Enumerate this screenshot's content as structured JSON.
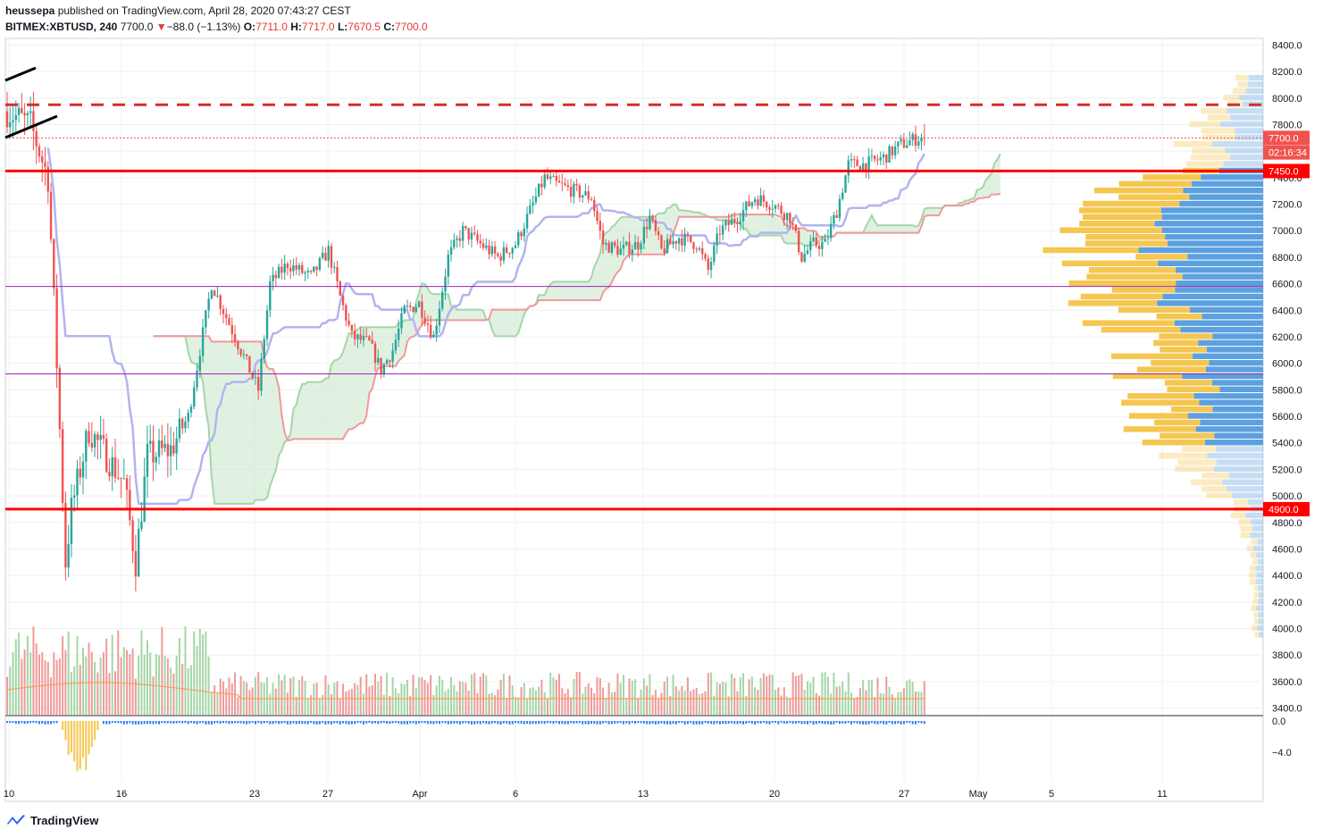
{
  "header": {
    "author": "heussepa",
    "published_text": "published on TradingView.com, April 28, 2020 07:43:27 CEST",
    "symbol": "BITMEX:XBTUSD, 240",
    "last": "7700.0",
    "change_arrow": "▼",
    "change": "−88.0 (−1.13%)",
    "o_label": "O:",
    "o": "7711.0",
    "h_label": "H:",
    "h": "7717.0",
    "l_label": "L:",
    "l": "7670.5",
    "c_label": "C:",
    "c": "7700.0"
  },
  "footer": {
    "brand": "TradingView"
  },
  "colors": {
    "up": "#26a69a",
    "down": "#ef5350",
    "level": "#ff0000",
    "purple": "#9c27b0",
    "cloud_up": "#c8e6c9",
    "cloud_down": "#ffcdd2",
    "kijun": "#b2b4f0",
    "vp_up": "#5ca0e0",
    "vp_down": "#f5c650"
  },
  "chart_data": {
    "type": "candlestick",
    "ylim": [
      3350,
      8450
    ],
    "price_ticks": [
      "8400.0",
      "8200.0",
      "8000.0",
      "7800.0",
      "7600.0",
      "7400.0",
      "7200.0",
      "7000.0",
      "6800.0",
      "6600.0",
      "6400.0",
      "6200.0",
      "6000.0",
      "5800.0",
      "5600.0",
      "5400.0",
      "5200.0",
      "5000.0",
      "4800.0",
      "4600.0",
      "4400.0",
      "4200.0",
      "4000.0",
      "3800.0",
      "3600.0",
      "3400.0"
    ],
    "osc_ticks": [
      "0.0",
      "−4.0"
    ],
    "x_ticks": [
      "10",
      "16",
      "23",
      "27",
      "Apr",
      "6",
      "13",
      "20",
      "27",
      "May",
      "5",
      "11"
    ],
    "price_labels": {
      "last": "7700.0",
      "countdown": "02:16:34",
      "level_high": "7450.0",
      "level_low": "4900.0"
    },
    "levels": [
      7950,
      7450,
      4900,
      6580,
      5920
    ],
    "anchors": [
      [
        0,
        7900
      ],
      [
        8,
        7800
      ],
      [
        14,
        7400
      ],
      [
        17,
        6000
      ],
      [
        20,
        4500
      ],
      [
        22,
        4900
      ],
      [
        28,
        5500
      ],
      [
        34,
        5300
      ],
      [
        40,
        5100
      ],
      [
        44,
        4500
      ],
      [
        48,
        5300
      ],
      [
        56,
        5350
      ],
      [
        62,
        5600
      ],
      [
        66,
        6100
      ],
      [
        70,
        6600
      ],
      [
        74,
        6400
      ],
      [
        78,
        6200
      ],
      [
        82,
        6000
      ],
      [
        86,
        5800
      ],
      [
        90,
        6600
      ],
      [
        96,
        6750
      ],
      [
        104,
        6650
      ],
      [
        110,
        6850
      ],
      [
        114,
        6500
      ],
      [
        118,
        6200
      ],
      [
        124,
        6150
      ],
      [
        128,
        5950
      ],
      [
        132,
        6100
      ],
      [
        136,
        6400
      ],
      [
        141,
        6450
      ],
      [
        146,
        6200
      ],
      [
        151,
        6800
      ],
      [
        156,
        7000
      ],
      [
        162,
        6900
      ],
      [
        168,
        6800
      ],
      [
        174,
        6900
      ],
      [
        180,
        7200
      ],
      [
        184,
        7400
      ],
      [
        188,
        7350
      ],
      [
        194,
        7300
      ],
      [
        200,
        7250
      ],
      [
        204,
        6900
      ],
      [
        210,
        6850
      ],
      [
        216,
        6900
      ],
      [
        220,
        7100
      ],
      [
        224,
        6850
      ],
      [
        230,
        6950
      ],
      [
        236,
        6900
      ],
      [
        240,
        6700
      ],
      [
        244,
        7000
      ],
      [
        250,
        7100
      ],
      [
        256,
        7250
      ],
      [
        262,
        7200
      ],
      [
        268,
        7100
      ],
      [
        272,
        6800
      ],
      [
        276,
        6900
      ],
      [
        280,
        6900
      ],
      [
        284,
        7150
      ],
      [
        288,
        7500
      ],
      [
        294,
        7500
      ],
      [
        300,
        7550
      ],
      [
        306,
        7650
      ],
      [
        312,
        7700
      ],
      [
        314,
        7700
      ]
    ]
  }
}
